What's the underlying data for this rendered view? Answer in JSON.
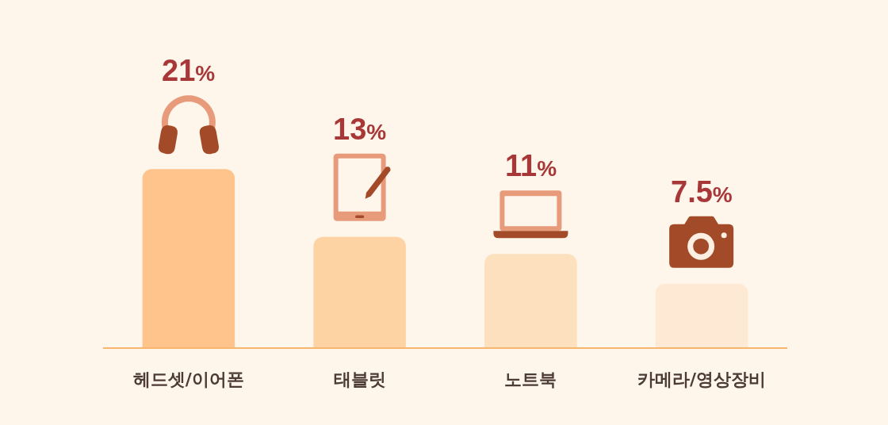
{
  "chart_data": {
    "type": "bar",
    "categories": [
      "헤드셋/이어폰",
      "태블릿",
      "노트북",
      "카메라/영상장비"
    ],
    "values": [
      21,
      13,
      11,
      7.5
    ],
    "value_labels": [
      "21%",
      "13%",
      "11%",
      "7.5%"
    ],
    "colors": [
      "#fec48b",
      "#fed3a4",
      "#fde0bd",
      "#fde9d4"
    ],
    "grid": false
  }
}
